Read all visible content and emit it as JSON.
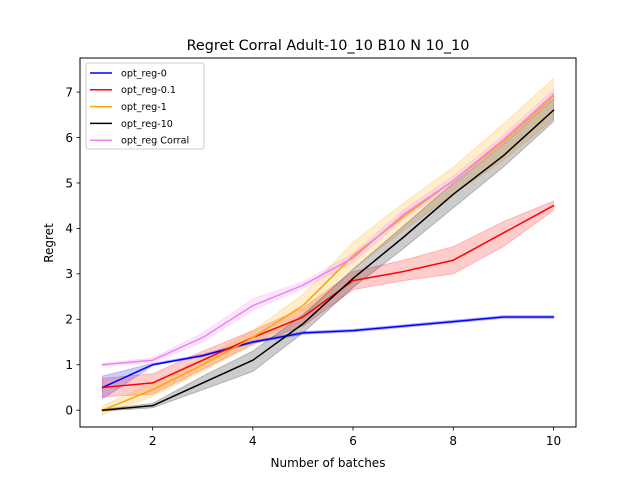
{
  "chart_data": {
    "type": "line",
    "title": "Regret Corral Adult-10_10 B10 N 10_10",
    "xlabel": "Number of batches",
    "ylabel": "Regret",
    "xlim": [
      0.55,
      10.45
    ],
    "ylim": [
      -0.37,
      7.75
    ],
    "xticks": [
      "2",
      "4",
      "6",
      "8",
      "10"
    ],
    "yticks": [
      "0",
      "1",
      "2",
      "3",
      "4",
      "5",
      "6",
      "7"
    ],
    "grid": false,
    "legend_position": "top-left",
    "x": [
      1,
      2,
      3,
      4,
      5,
      6,
      7,
      8,
      9,
      10
    ],
    "series": [
      {
        "name": "opt_reg-0",
        "color": "#0000ff",
        "values": [
          0.5,
          1.0,
          1.2,
          1.5,
          1.7,
          1.75,
          1.85,
          1.95,
          2.05,
          2.05
        ],
        "lower": [
          0.25,
          0.98,
          1.18,
          1.47,
          1.67,
          1.72,
          1.82,
          1.92,
          2.02,
          2.02
        ],
        "upper": [
          0.75,
          1.03,
          1.23,
          1.53,
          1.73,
          1.78,
          1.88,
          1.98,
          2.08,
          2.08
        ]
      },
      {
        "name": "opt_reg-0.1",
        "color": "#ff0000",
        "values": [
          0.5,
          0.6,
          1.1,
          1.6,
          2.05,
          2.85,
          3.05,
          3.3,
          3.9,
          4.5
        ],
        "lower": [
          0.3,
          0.35,
          0.9,
          1.45,
          1.85,
          2.65,
          2.85,
          3.0,
          3.6,
          4.4
        ],
        "upper": [
          0.7,
          0.8,
          1.3,
          1.75,
          2.25,
          3.05,
          3.3,
          3.6,
          4.15,
          4.6
        ]
      },
      {
        "name": "opt_reg-1",
        "color": "#ffa500",
        "values": [
          0.0,
          0.45,
          1.0,
          1.6,
          2.3,
          3.4,
          4.25,
          5.05,
          5.9,
          6.9
        ],
        "lower": [
          -0.1,
          0.3,
          0.85,
          1.45,
          2.05,
          3.1,
          3.95,
          4.75,
          5.5,
          6.4
        ],
        "upper": [
          0.1,
          0.6,
          1.15,
          1.75,
          2.55,
          3.7,
          4.55,
          5.35,
          6.3,
          7.3
        ]
      },
      {
        "name": "opt_reg-10",
        "color": "#000000",
        "values": [
          0.0,
          0.1,
          0.6,
          1.1,
          1.9,
          2.9,
          3.8,
          4.75,
          5.6,
          6.6
        ],
        "lower": [
          -0.02,
          0.05,
          0.45,
          0.85,
          1.7,
          2.7,
          3.55,
          4.45,
          5.35,
          6.35
        ],
        "upper": [
          0.02,
          0.15,
          0.75,
          1.3,
          2.1,
          3.1,
          4.05,
          5.0,
          5.85,
          6.85
        ]
      },
      {
        "name": "opt_reg Corral",
        "color": "#ee82ee",
        "values": [
          1.0,
          1.1,
          1.6,
          2.3,
          2.75,
          3.35,
          4.3,
          5.05,
          5.95,
          6.95
        ],
        "lower": [
          0.97,
          1.05,
          1.5,
          2.2,
          2.68,
          3.25,
          4.2,
          4.95,
          5.85,
          6.85
        ],
        "upper": [
          1.03,
          1.15,
          1.7,
          2.45,
          2.82,
          3.45,
          4.4,
          5.15,
          6.05,
          7.05
        ]
      }
    ]
  }
}
